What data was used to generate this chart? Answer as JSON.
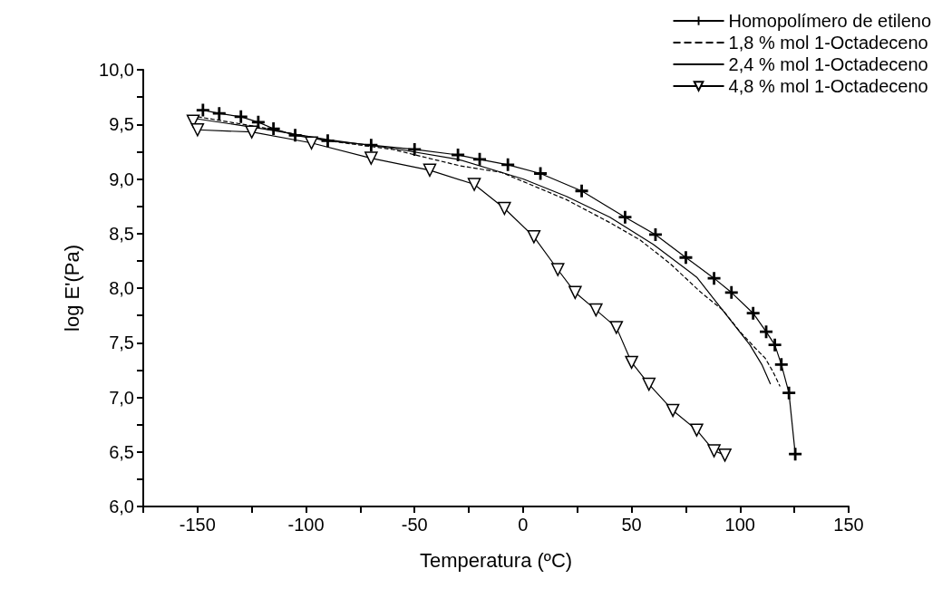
{
  "chart_data": {
    "type": "line",
    "xlabel": "Temperatura (ºC)",
    "ylabel": "log E'(Pa)",
    "xlim": [
      -175,
      150
    ],
    "ylim": [
      6,
      10
    ],
    "xticks": [
      {
        "value": -175,
        "label": null
      },
      -150,
      {
        "value": -125,
        "label": null
      },
      -100,
      {
        "value": -75,
        "label": null
      },
      -50,
      {
        "value": -25,
        "label": null
      },
      0,
      {
        "value": 25,
        "label": null
      },
      50,
      {
        "value": 75,
        "label": null
      },
      100,
      {
        "value": 125,
        "label": null
      },
      150
    ],
    "yticks": [
      {
        "value": 6,
        "label": "6,0"
      },
      {
        "value": 6.25,
        "label": null
      },
      {
        "value": 6.5,
        "label": "6,5"
      },
      {
        "value": 6.75,
        "label": null
      },
      {
        "value": 7,
        "label": "7,0"
      },
      {
        "value": 7.25,
        "label": null
      },
      {
        "value": 7.5,
        "label": "7,5"
      },
      {
        "value": 7.75,
        "label": null
      },
      {
        "value": 8,
        "label": "8,0"
      },
      {
        "value": 8.25,
        "label": null
      },
      {
        "value": 8.5,
        "label": "8,5"
      },
      {
        "value": 8.75,
        "label": null
      },
      {
        "value": 9,
        "label": "9,0"
      },
      {
        "value": 9.25,
        "label": null
      },
      {
        "value": 9.5,
        "label": "9,5"
      },
      {
        "value": 9.75,
        "label": null
      },
      {
        "value": 10,
        "label": "10,0"
      }
    ],
    "grid": false,
    "legend": "top right",
    "line_style": "solid",
    "series": [
      {
        "name": "Homopolímero de etileno",
        "color": "#000000",
        "marker": "cross",
        "x": [
          -147.5,
          -140,
          -130,
          -122,
          -115,
          -105,
          -90,
          -70,
          -50,
          -30,
          -20,
          -7,
          8,
          27,
          47,
          61,
          75,
          88,
          96,
          106,
          112,
          116,
          119,
          122.5,
          125.4
        ],
        "values": [
          9.63,
          9.6,
          9.57,
          9.52,
          9.46,
          9.4,
          9.35,
          9.31,
          9.27,
          9.22,
          9.18,
          9.13,
          9.05,
          8.89,
          8.65,
          8.49,
          8.28,
          8.09,
          7.96,
          7.77,
          7.6,
          7.48,
          7.3,
          7.04,
          6.48
        ]
      },
      {
        "name": "1,8 % mol 1-Octadeceno",
        "color": "#000000",
        "marker": "none",
        "line_style": "dashed",
        "x": [
          -150,
          -120,
          -90,
          -60,
          -29,
          -10,
          20,
          40,
          54,
          68,
          82,
          92,
          100,
          107,
          111.5,
          115,
          118.4
        ],
        "values": [
          9.57,
          9.47,
          9.35,
          9.27,
          9.12,
          9.06,
          8.81,
          8.6,
          8.44,
          8.22,
          7.96,
          7.8,
          7.6,
          7.45,
          7.36,
          7.24,
          7.1
        ]
      },
      {
        "name": "2,4 % mol 1-Octadeceno",
        "color": "#000000",
        "marker": "none",
        "x": [
          -150,
          -120,
          -90,
          -60,
          -30,
          0,
          20,
          40,
          60,
          80,
          95,
          104.5,
          110,
          114
        ],
        "values": [
          9.55,
          9.46,
          9.36,
          9.28,
          9.18,
          9.0,
          8.84,
          8.65,
          8.4,
          8.1,
          7.72,
          7.48,
          7.3,
          7.12
        ]
      },
      {
        "name": "4,8 % mol 1-Octadeceno",
        "color": "#000000",
        "marker": "triangle-down",
        "x": [
          -152,
          -150,
          -125,
          -97.5,
          -70,
          -43,
          -22.5,
          -8.6,
          5,
          16,
          24,
          33.6,
          43,
          50,
          58,
          69,
          80,
          88,
          93
        ],
        "values": [
          9.53,
          9.45,
          9.43,
          9.33,
          9.19,
          9.08,
          8.95,
          8.73,
          8.47,
          8.17,
          7.96,
          7.8,
          7.64,
          7.32,
          7.12,
          6.88,
          6.7,
          6.51,
          6.47
        ]
      }
    ]
  }
}
